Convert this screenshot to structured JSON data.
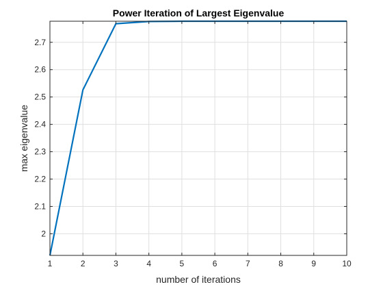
{
  "chart_data": {
    "type": "line",
    "title": "Power Iteration of Largest Eigenvalue",
    "xlabel": "number of iterations",
    "ylabel": "max eigenvalue",
    "xlim": [
      1,
      10
    ],
    "ylim": [
      1.921,
      2.777
    ],
    "grid": true,
    "x_ticks": [
      1,
      2,
      3,
      4,
      5,
      6,
      7,
      8,
      9,
      10
    ],
    "y_ticks": [
      2,
      2.1,
      2.2,
      2.3,
      2.4,
      2.5,
      2.6,
      2.7
    ],
    "y_tick_labels": [
      "2",
      "2.1",
      "2.2",
      "2.3",
      "2.4",
      "2.5",
      "2.6",
      "2.7"
    ],
    "series": [
      {
        "name": "max eigenvalue",
        "color": "#0072bd",
        "x": [
          1,
          2,
          3,
          4,
          5,
          6,
          7,
          8,
          9,
          10
        ],
        "values": [
          1.921,
          2.526,
          2.768,
          2.776,
          2.777,
          2.777,
          2.777,
          2.777,
          2.777,
          2.777
        ]
      }
    ]
  },
  "colors": {
    "background": "#ffffff",
    "axes": "#262626",
    "grid": "#dfdfdf",
    "line": "#0072bd"
  }
}
